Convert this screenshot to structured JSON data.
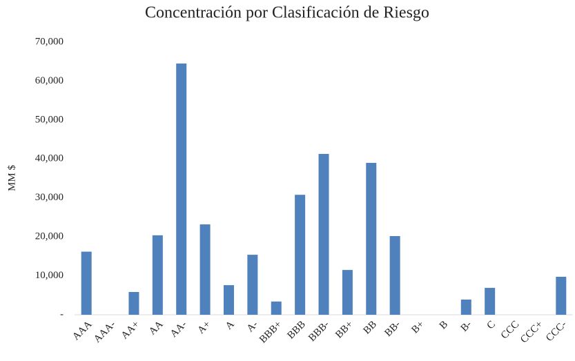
{
  "chart_data": {
    "type": "bar",
    "title": "Concentración por Clasificación de Riesgo",
    "y_label": "MM $",
    "categories": [
      "AAA",
      "AAA-",
      "AA+",
      "AA",
      "AA-",
      "A+",
      "A",
      "A-",
      "BBB+",
      "BBB",
      "BBB-",
      "BB+",
      "BB",
      "BB-",
      "B+",
      "B",
      "B-",
      "C",
      "CCC",
      "CCC+",
      "CCC-"
    ],
    "values": [
      16200,
      0,
      5850,
      20400,
      64500,
      23200,
      7600,
      15400,
      3400,
      30800,
      41300,
      11500,
      39000,
      20200,
      0,
      0,
      3900,
      6900,
      0,
      0,
      9750
    ],
    "color": "#4f81bd",
    "ylim": [
      0,
      70000
    ],
    "yticks": [
      {
        "value": 0,
        "label": "-"
      },
      {
        "value": 10000,
        "label": "10,000"
      },
      {
        "value": 20000,
        "label": "20,000"
      },
      {
        "value": 30000,
        "label": "30,000"
      },
      {
        "value": 40000,
        "label": "40,000"
      },
      {
        "value": 50000,
        "label": "50,000"
      },
      {
        "value": 60000,
        "label": "60,000"
      },
      {
        "value": 70000,
        "label": "70,000"
      }
    ],
    "grid": false
  }
}
